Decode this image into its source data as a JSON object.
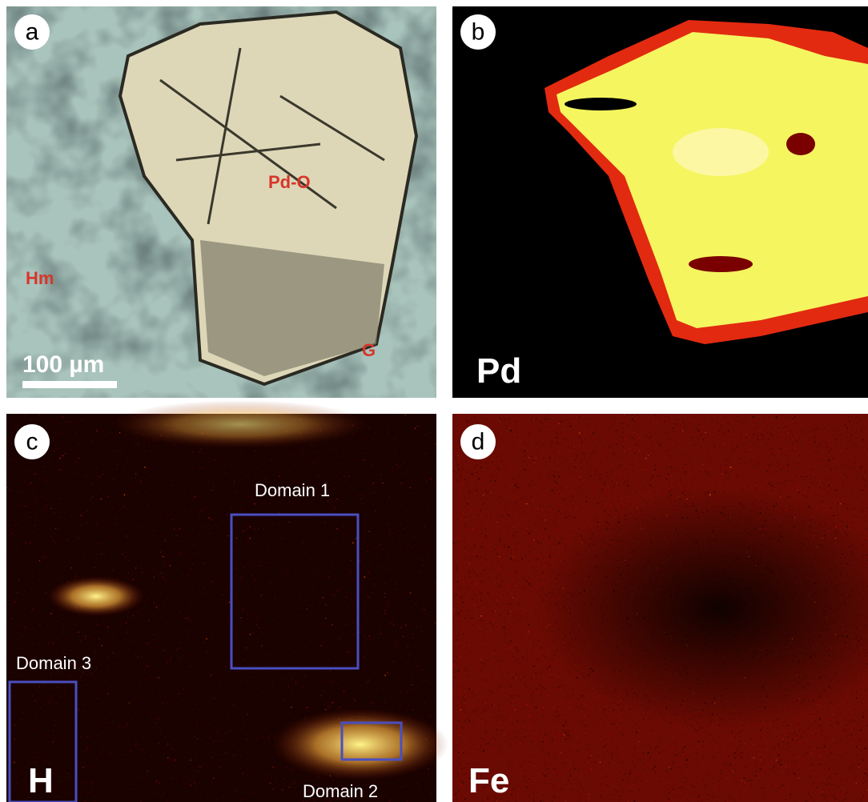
{
  "panels": [
    {
      "label": "a",
      "annotations": [
        "Pd-O",
        "Hm",
        "G"
      ],
      "scale_bar": "100 µm"
    },
    {
      "label": "b",
      "element": "Pd"
    },
    {
      "label": "c",
      "element": "H",
      "domains": [
        "Domain 1",
        "Domain 2",
        "Domain 3"
      ]
    },
    {
      "label": "d",
      "element": "Fe"
    }
  ]
}
